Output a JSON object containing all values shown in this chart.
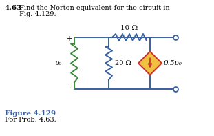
{
  "title_bold": "4.63",
  "title_rest1": "Find the Norton equivalent for the circuit in",
  "title_rest2": "Fig. 4.129.",
  "fig_label": "Figure 4.129",
  "fig_sublabel": "For Prob. 4.63.",
  "R1_label": "10 Ω",
  "R2_label": "20 Ω",
  "source_label": "0.5υ₀",
  "vs_label": "υ₀",
  "bg_color": "#ffffff",
  "circuit_color": "#3a5fa0",
  "vs_color": "#3a8c3a",
  "dep_border": "#c83030",
  "dep_fill": "#f0c040",
  "dep_arrow": "#c83030",
  "text_color": "#000000",
  "label_color": "#3a5fa0",
  "plus_minus_color": "#000000"
}
